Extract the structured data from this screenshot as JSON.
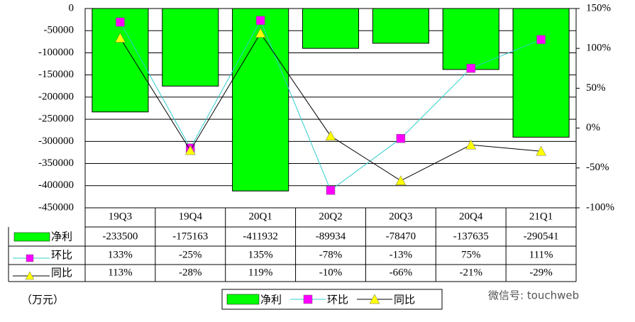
{
  "chart_data": {
    "type": "bar",
    "y_label": "（万元）",
    "watermark": "微信号: touchweb",
    "categories": [
      "19Q3",
      "19Q4",
      "20Q1",
      "20Q2",
      "20Q3",
      "20Q4",
      "21Q1"
    ],
    "series": [
      {
        "name": "净利",
        "type": "bar",
        "color": "#00ff00",
        "axis": "y",
        "values": [
          -233500,
          -175163,
          -411932,
          -89934,
          -78470,
          -137635,
          -290541
        ]
      },
      {
        "name": "环比",
        "type": "line",
        "color": "#33cccc",
        "marker": "square",
        "marker_color": "#ff00ff",
        "axis": "y2",
        "values": [
          133,
          -25,
          135,
          -78,
          -13,
          75,
          111
        ],
        "value_labels": [
          "133%",
          "-25%",
          "135%",
          "-78%",
          "-13%",
          "75%",
          "111%"
        ]
      },
      {
        "name": "同比",
        "type": "line",
        "color": "#000000",
        "marker": "triangle",
        "marker_color": "#ffff00",
        "axis": "y2",
        "values": [
          113,
          -28,
          119,
          -10,
          -66,
          -21,
          -29
        ],
        "value_labels": [
          "113%",
          "-28%",
          "119%",
          "-10%",
          "-66%",
          "-21%",
          "-29%"
        ]
      }
    ],
    "ylim": [
      -450000,
      0
    ],
    "yticks": [
      0,
      -50000,
      -100000,
      -150000,
      -200000,
      -250000,
      -300000,
      -350000,
      -400000,
      -450000
    ],
    "y2lim": [
      -100,
      150
    ],
    "y2ticks": [
      {
        "value": 150,
        "label": "150%"
      },
      {
        "value": 100,
        "label": "100%"
      },
      {
        "value": 50,
        "label": "50%"
      },
      {
        "value": 0,
        "label": "0%"
      },
      {
        "value": -50,
        "label": "-50%"
      },
      {
        "value": -100,
        "label": "-100%"
      }
    ],
    "grid": true,
    "legend": "bottom"
  }
}
